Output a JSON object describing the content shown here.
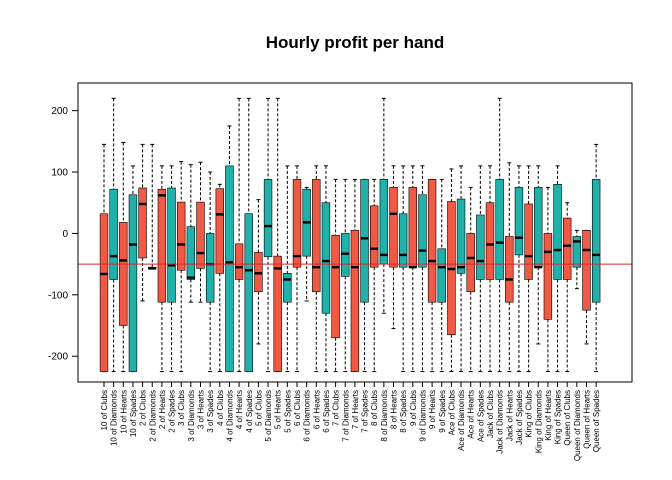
{
  "chart_data": {
    "type": "boxplot",
    "title": "Hourly profit per hand",
    "xlabel": "",
    "ylabel": "",
    "ylim": [
      -242,
      245
    ],
    "yticks": [
      -200,
      -100,
      0,
      100,
      200
    ],
    "reference_line": {
      "y": -50,
      "color": "#d62728"
    },
    "colors": [
      "#f05a45",
      "#20b2aa"
    ],
    "grid": false,
    "categories": [
      "10 of Clubs",
      "10 of Diamonds",
      "10 of Hearts",
      "10 of Spades",
      "2 of Clubs",
      "2 of Diamonds",
      "2 of Hearts",
      "2 of Spades",
      "3 of Clubs",
      "3 of Diamonds",
      "3 of Hearts",
      "3 of Spades",
      "4 of Clubs",
      "4 of Diamonds",
      "4 of Hearts",
      "4 of Spades",
      "5 of Clubs",
      "5 of Diamonds",
      "5 of Hearts",
      "5 of Spades",
      "6 of Clubs",
      "6 of Diamonds",
      "6 of Hearts",
      "6 of Spades",
      "7 of Clubs",
      "7 of Diamonds",
      "7 of Hearts",
      "7 of Spades",
      "8 of Clubs",
      "8 of Diamonds",
      "8 of Hearts",
      "8 of Spades",
      "9 of Clubs",
      "9 of Diamonds",
      "9 of Hearts",
      "9 of Spades",
      "Ace of Clubs",
      "Ace of Diamonds",
      "Ace of Hearts",
      "Ace of Spades",
      "Jack of Clubs",
      "Jack of Diamonds",
      "Jack of Hearts",
      "Jack of Spades",
      "King of Clubs",
      "King of Diamonds",
      "King of Hearts",
      "King of Spades",
      "Queen of Clubs",
      "Queen of Diamonds",
      "Queen of Hearts",
      "Queen of Spades"
    ],
    "boxes": [
      {
        "min": -225,
        "q1": -225,
        "median": -66,
        "q3": 32,
        "max": 145
      },
      {
        "min": -225,
        "q1": -75,
        "median": -37,
        "q3": 72,
        "max": 220
      },
      {
        "min": -225,
        "q1": -150,
        "median": -44,
        "q3": 18,
        "max": 148
      },
      {
        "min": -225,
        "q1": -225,
        "median": -18,
        "q3": 63,
        "max": 110
      },
      {
        "min": -110,
        "q1": -40,
        "median": 48,
        "q3": 74,
        "max": 145
      },
      {
        "min": -57,
        "q1": -57,
        "median": -57,
        "q3": -55,
        "max": 145
      },
      {
        "min": -225,
        "q1": -112,
        "median": 62,
        "q3": 72,
        "max": 110
      },
      {
        "min": -225,
        "q1": -112,
        "median": -52,
        "q3": 74,
        "max": 110
      },
      {
        "min": -225,
        "q1": -60,
        "median": -18,
        "q3": 51,
        "max": 117
      },
      {
        "min": -112,
        "q1": -75,
        "median": -72,
        "q3": 11,
        "max": 112
      },
      {
        "min": -112,
        "q1": -57,
        "median": -32,
        "q3": 51,
        "max": 116
      },
      {
        "min": -225,
        "q1": -112,
        "median": -50,
        "q3": 0,
        "max": 100
      },
      {
        "min": -225,
        "q1": -65,
        "median": 31,
        "q3": 73,
        "max": 80
      },
      {
        "min": -225,
        "q1": -225,
        "median": -47,
        "q3": 110,
        "max": 175
      },
      {
        "min": -225,
        "q1": -75,
        "median": -55,
        "q3": -17,
        "max": 220
      },
      {
        "min": -225,
        "q1": -225,
        "median": -60,
        "q3": 32,
        "max": 220
      },
      {
        "min": -180,
        "q1": -95,
        "median": -65,
        "q3": -31,
        "max": 55
      },
      {
        "min": -225,
        "q1": -38,
        "median": 12,
        "q3": 88,
        "max": 220
      },
      {
        "min": -225,
        "q1": -225,
        "median": -57,
        "q3": -37,
        "max": 220
      },
      {
        "min": -225,
        "q1": -112,
        "median": -75,
        "q3": -65,
        "max": 110
      },
      {
        "min": -225,
        "q1": -55,
        "median": -37,
        "q3": 88,
        "max": 110
      },
      {
        "min": -110,
        "q1": -37,
        "median": 18,
        "q3": 72,
        "max": 75
      },
      {
        "min": -225,
        "q1": -95,
        "median": -55,
        "q3": 88,
        "max": 110
      },
      {
        "min": -225,
        "q1": -130,
        "median": -45,
        "q3": 50,
        "max": 110
      },
      {
        "min": -225,
        "q1": -170,
        "median": -55,
        "q3": -3,
        "max": 88
      },
      {
        "min": -225,
        "q1": -70,
        "median": -33,
        "q3": 0,
        "max": 88
      },
      {
        "min": -225,
        "q1": -225,
        "median": -55,
        "q3": 5,
        "max": 88
      },
      {
        "min": -225,
        "q1": -112,
        "median": -8,
        "q3": 88,
        "max": 88
      },
      {
        "min": -225,
        "q1": -55,
        "median": -25,
        "q3": 45,
        "max": 88
      },
      {
        "min": -130,
        "q1": -50,
        "median": -35,
        "q3": 88,
        "max": 220
      },
      {
        "min": -155,
        "q1": -55,
        "median": 32,
        "q3": 75,
        "max": 110
      },
      {
        "min": -225,
        "q1": -55,
        "median": -35,
        "q3": 32,
        "max": 110
      },
      {
        "min": -225,
        "q1": -55,
        "median": -55,
        "q3": 75,
        "max": 110
      },
      {
        "min": -225,
        "q1": -55,
        "median": -28,
        "q3": 63,
        "max": 110
      },
      {
        "min": -225,
        "q1": -112,
        "median": -45,
        "q3": 88,
        "max": 88
      },
      {
        "min": -225,
        "q1": -112,
        "median": -55,
        "q3": -25,
        "max": 88
      },
      {
        "min": -225,
        "q1": -165,
        "median": -58,
        "q3": 52,
        "max": 105
      },
      {
        "min": -225,
        "q1": -65,
        "median": -55,
        "q3": 56,
        "max": 110
      },
      {
        "min": -225,
        "q1": -95,
        "median": -40,
        "q3": 0,
        "max": 75
      },
      {
        "min": -225,
        "q1": -75,
        "median": -45,
        "q3": 30,
        "max": 110
      },
      {
        "min": -225,
        "q1": -75,
        "median": -18,
        "q3": 50,
        "max": 110
      },
      {
        "min": -225,
        "q1": -75,
        "median": -15,
        "q3": 88,
        "max": 220
      },
      {
        "min": -225,
        "q1": -112,
        "median": -75,
        "q3": -5,
        "max": 115
      },
      {
        "min": -225,
        "q1": -35,
        "median": -7,
        "q3": 75,
        "max": 110
      },
      {
        "min": -225,
        "q1": -75,
        "median": -37,
        "q3": 48,
        "max": 110
      },
      {
        "min": -180,
        "q1": -55,
        "median": -55,
        "q3": 75,
        "max": 110
      },
      {
        "min": -225,
        "q1": -140,
        "median": -30,
        "q3": 0,
        "max": 75
      },
      {
        "min": -225,
        "q1": -75,
        "median": -27,
        "q3": 80,
        "max": 110
      },
      {
        "min": -225,
        "q1": -75,
        "median": -20,
        "q3": 25,
        "max": 50
      },
      {
        "min": -90,
        "q1": -55,
        "median": -13,
        "q3": -5,
        "max": 5
      },
      {
        "min": -180,
        "q1": -125,
        "median": -27,
        "q3": 5,
        "max": 5
      },
      {
        "min": -225,
        "q1": -112,
        "median": -35,
        "q3": 88,
        "max": 145
      }
    ]
  }
}
